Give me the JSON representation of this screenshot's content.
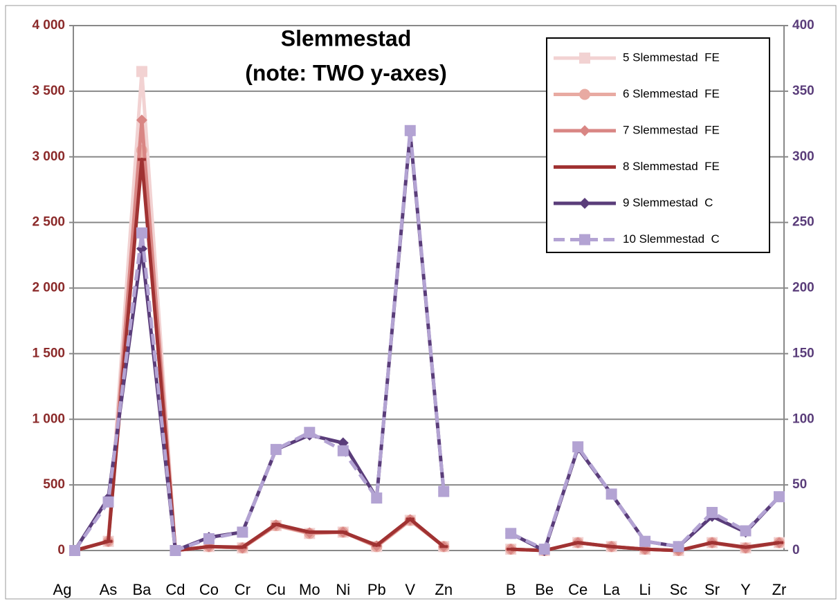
{
  "chart_data": {
    "type": "line",
    "title": "Slemmestad",
    "subtitle": "(note: TWO y-axes)",
    "categories": [
      "Ag",
      "As",
      "Ba",
      "Cd",
      "Co",
      "Cr",
      "Cu",
      "Mo",
      "Ni",
      "Pb",
      "V",
      "Zn",
      null,
      "B",
      "Be",
      "Ce",
      "La",
      "Li",
      "Sc",
      "Sr",
      "Y",
      "Zr"
    ],
    "ylim": [
      0,
      4000
    ],
    "yticks": [
      0,
      500,
      {
        "value": 1000,
        "label": "1 000"
      },
      {
        "value": 1500,
        "label": "1 500"
      },
      {
        "value": 2000,
        "label": "2 000"
      },
      {
        "value": 2500,
        "label": "2 500"
      },
      {
        "value": 3000,
        "label": "3 000"
      },
      {
        "value": 3500,
        "label": "3 500"
      },
      {
        "value": 4000,
        "label": "4 000"
      }
    ],
    "y2lim": [
      0,
      400
    ],
    "y2ticks": [
      0,
      50,
      100,
      150,
      200,
      250,
      300,
      350,
      400
    ],
    "yaxis_color": "#8b2a2a",
    "y2axis_color": "#5a3d7a",
    "grid": true,
    "legend": "upper right",
    "series": [
      {
        "name": "5 Slemmestad  FE",
        "color": "#f2d2d2",
        "marker": "square",
        "values": [
          0,
          70,
          3650,
          0,
          30,
          20,
          190,
          130,
          140,
          30,
          230,
          30,
          null,
          10,
          0,
          60,
          30,
          10,
          0,
          60,
          20,
          60
        ]
      },
      {
        "name": "6 Slemmestad  FE",
        "color": "#e8aaa2",
        "marker": "circle",
        "values": [
          0,
          70,
          3050,
          0,
          30,
          20,
          190,
          130,
          140,
          30,
          230,
          30,
          null,
          10,
          0,
          60,
          30,
          10,
          0,
          60,
          20,
          60
        ]
      },
      {
        "name": "7 Slemmestad  FE",
        "color": "#d98684",
        "marker": "diamond",
        "values": [
          0,
          70,
          3280,
          0,
          30,
          20,
          195,
          135,
          140,
          35,
          235,
          30,
          null,
          10,
          0,
          60,
          30,
          10,
          0,
          60,
          20,
          60
        ]
      },
      {
        "name": "8 Slemmestad  FE",
        "color": "#a03232",
        "marker": "dash",
        "values": [
          0,
          70,
          2980,
          0,
          30,
          25,
          200,
          140,
          140,
          40,
          240,
          30,
          null,
          10,
          0,
          60,
          30,
          10,
          0,
          60,
          25,
          60
        ]
      },
      {
        "name": "9 Slemmestad  C",
        "color": "#5a3d7a",
        "marker": "diamond",
        "axis": "y2",
        "values": [
          0,
          40,
          230,
          0,
          10,
          14,
          77,
          88,
          82,
          40,
          318,
          45,
          null,
          13,
          0,
          78,
          43,
          7,
          3,
          26,
          14,
          41
        ]
      },
      {
        "name": "10 Slemmestad  C",
        "color": "#b3a3d3",
        "marker": "square",
        "dashed": true,
        "axis": "y2",
        "values": [
          0,
          37,
          242,
          0,
          9,
          14,
          77,
          90,
          76,
          40,
          320,
          45,
          null,
          13,
          1,
          79,
          43,
          7,
          3,
          29,
          15,
          41
        ]
      }
    ]
  }
}
